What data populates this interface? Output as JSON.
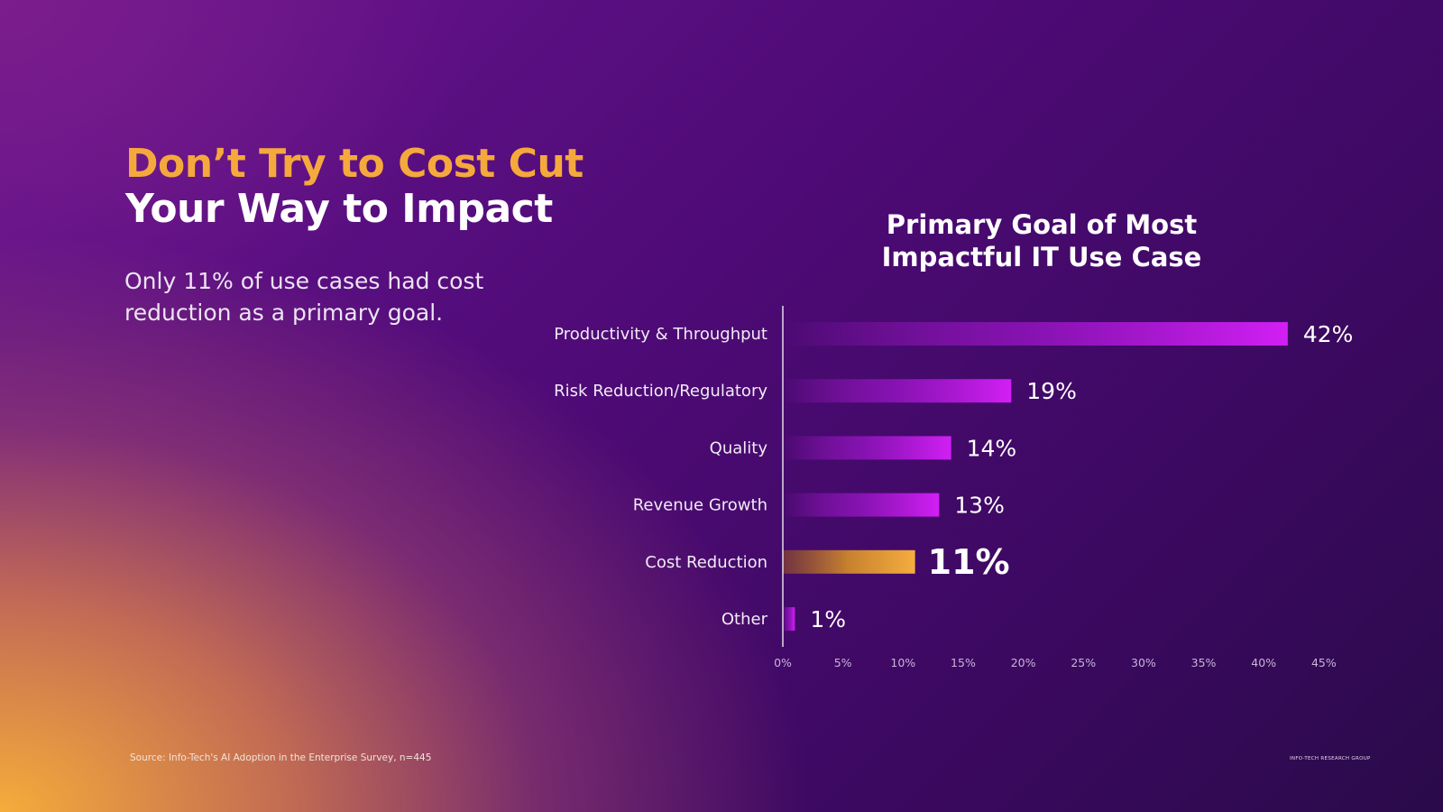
{
  "headline": {
    "line1": "Don’t Try to Cost Cut",
    "line2": "Your Way to Impact"
  },
  "subtext": "Only 11% of use cases had cost reduction as a primary goal.",
  "footer": {
    "source": "Source: Info-Tech's AI Adoption in the Enterprise Survey, n=445",
    "brand": "INFO-TECH RESEARCH GROUP"
  },
  "colors": {
    "bar": "#cc1ff2",
    "highlight": "#f5a93c",
    "title_accent": "#f5a93c"
  },
  "chart_data": {
    "type": "bar",
    "orientation": "horizontal",
    "title": "Primary Goal of Most Impactful IT Use Case",
    "categories": [
      "Productivity & Throughput",
      "Risk Reduction/Regulatory",
      "Quality",
      "Revenue Growth",
      "Cost Reduction",
      "Other"
    ],
    "values": [
      42,
      19,
      14,
      13,
      11,
      1
    ],
    "value_labels": [
      "42%",
      "19%",
      "14%",
      "13%",
      "11%",
      "1%"
    ],
    "highlight_category": "Cost Reduction",
    "xlim": [
      0,
      45
    ],
    "xticks": [
      0,
      5,
      10,
      15,
      20,
      25,
      30,
      35,
      40,
      45
    ],
    "xtick_labels": [
      "0%",
      "5%",
      "10%",
      "15%",
      "20%",
      "25%",
      "30%",
      "35%",
      "40%",
      "45%"
    ],
    "grid": false,
    "legend": "none"
  }
}
